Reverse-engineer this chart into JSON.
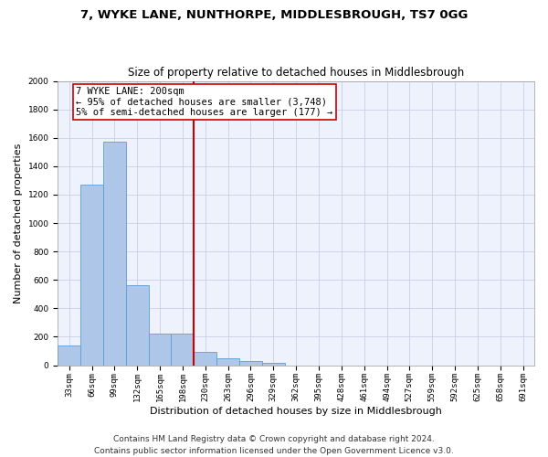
{
  "title": "7, WYKE LANE, NUNTHORPE, MIDDLESBROUGH, TS7 0GG",
  "subtitle": "Size of property relative to detached houses in Middlesbrough",
  "xlabel": "Distribution of detached houses by size in Middlesbrough",
  "ylabel": "Number of detached properties",
  "footer_line1": "Contains HM Land Registry data © Crown copyright and database right 2024.",
  "footer_line2": "Contains public sector information licensed under the Open Government Licence v3.0.",
  "bar_labels": [
    "33sqm",
    "66sqm",
    "99sqm",
    "132sqm",
    "165sqm",
    "198sqm",
    "230sqm",
    "263sqm",
    "296sqm",
    "329sqm",
    "362sqm",
    "395sqm",
    "428sqm",
    "461sqm",
    "494sqm",
    "527sqm",
    "559sqm",
    "592sqm",
    "625sqm",
    "658sqm",
    "691sqm"
  ],
  "bar_values": [
    140,
    1270,
    1570,
    560,
    220,
    220,
    95,
    50,
    28,
    18,
    0,
    0,
    0,
    0,
    0,
    0,
    0,
    0,
    0,
    0,
    0
  ],
  "bar_color": "#aec6e8",
  "bar_edge_color": "#5a9fd4",
  "vline_x": 5.5,
  "vline_color": "#cc0000",
  "annotation_line1": "7 WYKE LANE: 200sqm",
  "annotation_line2": "← 95% of detached houses are smaller (3,748)",
  "annotation_line3": "5% of semi-detached houses are larger (177) →",
  "annotation_box_color": "#cc0000",
  "ylim": [
    0,
    2000
  ],
  "yticks": [
    0,
    200,
    400,
    600,
    800,
    1000,
    1200,
    1400,
    1600,
    1800,
    2000
  ],
  "grid_color": "#c8d0e8",
  "bg_color": "#eef2fc",
  "title_fontsize": 9.5,
  "subtitle_fontsize": 8.5,
  "xlabel_fontsize": 8,
  "ylabel_fontsize": 8,
  "tick_fontsize": 6.5,
  "annotation_fontsize": 7.5,
  "footer_fontsize": 6.5
}
